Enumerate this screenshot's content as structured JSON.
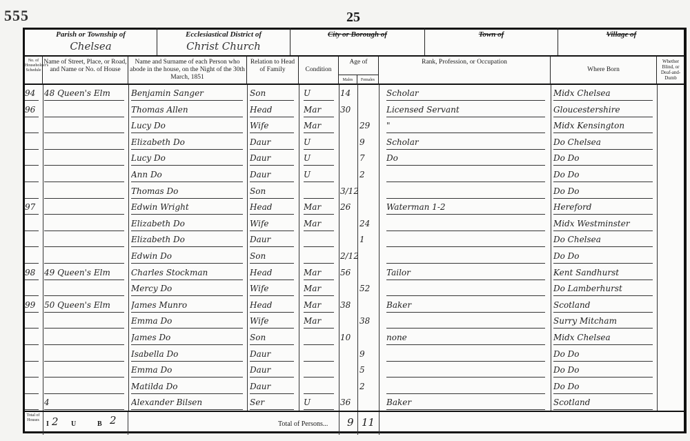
{
  "folio_number": "555",
  "page_number": "25",
  "header": {
    "parish_label": "Parish or Township of",
    "parish_value": "Chelsea",
    "ecclesiastical_label": "Ecclesiastical District of",
    "ecclesiastical_value": "Christ Church",
    "city_label": "City or Borough of",
    "town_label": "Town of",
    "village_label": "Village of"
  },
  "columns": {
    "schedule": "No. of Householder's Schedule",
    "address": "Name of Street, Place, or Road, and Name or No. of House",
    "name": "Name and Surname of each Person who abode in the house, on the Night of the 30th March, 1851",
    "relation": "Relation to Head of Family",
    "condition": "Condition",
    "age": "Age of",
    "males": "Males",
    "females": "Females",
    "occupation": "Rank, Profession, or Occupation",
    "born": "Where Born",
    "blind": "Whether Blind, or Deaf-and-Dumb"
  },
  "rows": [
    {
      "sched": "94",
      "address": "48 Queen's Elm",
      "name": "Benjamin Sanger",
      "rel": "Son",
      "cond": "U",
      "m": "14",
      "f": "",
      "occ": "Scholar",
      "born": "Midx Chelsea"
    },
    {
      "sched": "96",
      "address": "",
      "name": "Thomas Allen",
      "rel": "Head",
      "cond": "Mar",
      "m": "30",
      "f": "",
      "occ": "Licensed Servant",
      "born": "Gloucestershire"
    },
    {
      "sched": "",
      "address": "",
      "name": "Lucy Do",
      "rel": "Wife",
      "cond": "Mar",
      "m": "",
      "f": "29",
      "occ": "\"",
      "born": "Midx Kensington"
    },
    {
      "sched": "",
      "address": "",
      "name": "Elizabeth Do",
      "rel": "Daur",
      "cond": "U",
      "m": "",
      "f": "9",
      "occ": "Scholar",
      "born": "Do Chelsea"
    },
    {
      "sched": "",
      "address": "",
      "name": "Lucy Do",
      "rel": "Daur",
      "cond": "U",
      "m": "",
      "f": "7",
      "occ": "Do",
      "born": "Do Do"
    },
    {
      "sched": "",
      "address": "",
      "name": "Ann Do",
      "rel": "Daur",
      "cond": "U",
      "m": "",
      "f": "2",
      "occ": "",
      "born": "Do Do"
    },
    {
      "sched": "",
      "address": "",
      "name": "Thomas Do",
      "rel": "Son",
      "cond": "",
      "m": "3/12",
      "f": "",
      "occ": "",
      "born": "Do Do"
    },
    {
      "sched": "97",
      "address": "",
      "name": "Edwin Wright",
      "rel": "Head",
      "cond": "Mar",
      "m": "26",
      "f": "",
      "occ": "Waterman 1-2",
      "born": "Hereford"
    },
    {
      "sched": "",
      "address": "",
      "name": "Elizabeth Do",
      "rel": "Wife",
      "cond": "Mar",
      "m": "",
      "f": "24",
      "occ": "",
      "born": "Midx Westminster"
    },
    {
      "sched": "",
      "address": "",
      "name": "Elizabeth Do",
      "rel": "Daur",
      "cond": "",
      "m": "",
      "f": "1",
      "occ": "",
      "born": "Do Chelsea"
    },
    {
      "sched": "",
      "address": "",
      "name": "Edwin Do",
      "rel": "Son",
      "cond": "",
      "m": "2/12",
      "f": "",
      "occ": "",
      "born": "Do Do"
    },
    {
      "sched": "98",
      "address": "49 Queen's Elm",
      "name": "Charles Stockman",
      "rel": "Head",
      "cond": "Mar",
      "m": "56",
      "f": "",
      "occ": "Tailor",
      "born": "Kent Sandhurst"
    },
    {
      "sched": "",
      "address": "",
      "name": "Mercy Do",
      "rel": "Wife",
      "cond": "Mar",
      "m": "",
      "f": "52",
      "occ": "",
      "born": "Do Lamberhurst"
    },
    {
      "sched": "99",
      "address": "50 Queen's Elm",
      "name": "James Munro",
      "rel": "Head",
      "cond": "Mar",
      "m": "38",
      "f": "",
      "occ": "Baker",
      "born": "Scotland"
    },
    {
      "sched": "",
      "address": "",
      "name": "Emma Do",
      "rel": "Wife",
      "cond": "Mar",
      "m": "",
      "f": "38",
      "occ": "",
      "born": "Surry Mitcham"
    },
    {
      "sched": "",
      "address": "",
      "name": "James Do",
      "rel": "Son",
      "cond": "",
      "m": "10",
      "f": "",
      "occ": "none",
      "born": "Midx Chelsea"
    },
    {
      "sched": "",
      "address": "",
      "name": "Isabella Do",
      "rel": "Daur",
      "cond": "",
      "m": "",
      "f": "9",
      "occ": "",
      "born": "Do Do"
    },
    {
      "sched": "",
      "address": "",
      "name": "Emma Do",
      "rel": "Daur",
      "cond": "",
      "m": "",
      "f": "5",
      "occ": "",
      "born": "Do Do"
    },
    {
      "sched": "",
      "address": "",
      "name": "Matilda Do",
      "rel": "Daur",
      "cond": "",
      "m": "",
      "f": "2",
      "occ": "",
      "born": "Do Do"
    },
    {
      "sched": "",
      "address": "4",
      "name": "Alexander Bilsen",
      "rel": "Ser",
      "cond": "U",
      "m": "36",
      "f": "",
      "occ": "Baker",
      "born": "Scotland"
    }
  ],
  "totals": {
    "houses_label": "Total of Houses",
    "inhabited_label": "I",
    "inhabited_value": "2",
    "uninhabited_label": "U",
    "building_label": "B",
    "building_value": "2",
    "persons_label": "Total of Persons...",
    "males_total": "9",
    "females_total": "11"
  }
}
